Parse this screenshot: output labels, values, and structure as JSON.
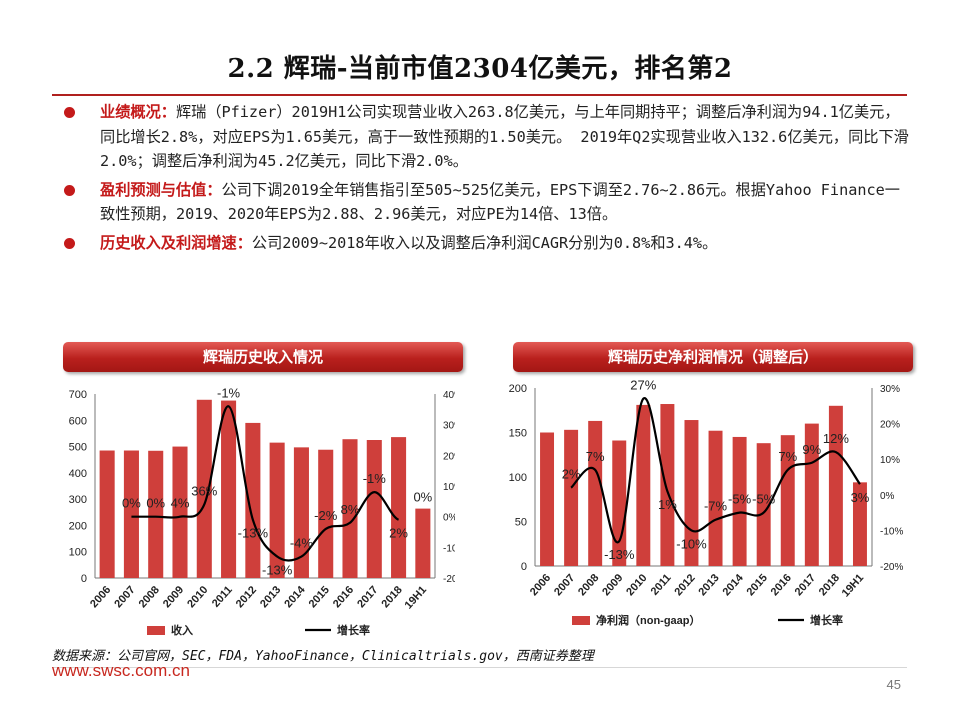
{
  "title": "2.2 辉瑞-当前市值2304亿美元，排名第2",
  "bullets": [
    {
      "lead": "业绩概况：",
      "text": "辉瑞（Pfizer）2019H1公司实现营业收入263.8亿美元，与上年同期持平；调整后净利润为94.1亿美元，同比增长2.8%，对应EPS为1.65美元，高于一致性预期的1.50美元。 2019年Q2实现营业收入132.6亿美元，同比下滑2.0%；调整后净利润为45.2亿美元，同比下滑2.0%。"
    },
    {
      "lead": "盈利预测与估值：",
      "text": "公司下调2019全年销售指引至505~525亿美元，EPS下调至2.76~2.86元。根据Yahoo Finance一致性预期，2019、2020年EPS为2.88、2.96美元，对应PE为14倍、13倍。"
    },
    {
      "lead": "历史收入及利润增速：",
      "text": "公司2009~2018年收入以及调整后净利润CAGR分别为0.8%和3.4%。"
    }
  ],
  "banners": {
    "left": "辉瑞历史收入情况",
    "right": "辉瑞历史净利润情况（调整后）"
  },
  "colors": {
    "bar": "#cf3f3b",
    "line": "#000000",
    "accent": "#c41a1a"
  },
  "chart_data": [
    {
      "type": "bar+line",
      "title": "辉瑞历史收入情况",
      "categories": [
        "2006",
        "2007",
        "2008",
        "2009",
        "2010",
        "2011",
        "2012",
        "2013",
        "2014",
        "2015",
        "2016",
        "2017",
        "2018",
        "19H1"
      ],
      "bar_series": {
        "name": "收入",
        "values": [
          485,
          485,
          484,
          500,
          678,
          675,
          590,
          515,
          497,
          488,
          528,
          525,
          536,
          264
        ]
      },
      "line_series": {
        "name": "增长率",
        "values": [
          0,
          0,
          0,
          4,
          36,
          -1,
          -13,
          -13,
          -4,
          -2,
          8,
          -1,
          2,
          0
        ]
      },
      "line_labels": [
        "0%",
        "0%",
        "4%",
        "36%",
        "-1%",
        "-13%",
        "-13%",
        "-4%",
        "-2%",
        "8%",
        "-1%",
        "2%",
        "0%"
      ],
      "line_label_index": [
        1,
        2,
        3,
        4,
        5,
        6,
        7,
        8,
        9,
        10,
        11,
        12,
        13
      ],
      "y_left": {
        "min": 0,
        "max": 700,
        "step": 100,
        "ticks": [
          "0",
          "100",
          "200",
          "300",
          "400",
          "500",
          "600",
          "700"
        ]
      },
      "y_right": {
        "min": -20,
        "max": 40,
        "step": 10,
        "ticks": [
          "-20%",
          "-10%",
          "0%",
          "10%",
          "20%",
          "30%",
          "40%"
        ]
      },
      "legend": [
        "收入",
        "增长率"
      ],
      "legend_position": "bottom"
    },
    {
      "type": "bar+line",
      "title": "辉瑞历史净利润情况（调整后）",
      "categories": [
        "2006",
        "2007",
        "2008",
        "2009",
        "2010",
        "2011",
        "2012",
        "2013",
        "2014",
        "2015",
        "2016",
        "2017",
        "2018",
        "19H1"
      ],
      "bar_series": {
        "name": "净利润（non-gaap）",
        "values": [
          150,
          153,
          163,
          141,
          181,
          182,
          164,
          152,
          145,
          138,
          147,
          160,
          180,
          94
        ]
      },
      "line_series": {
        "name": "增长率",
        "values": [
          2,
          7,
          -13,
          27,
          1,
          -10,
          -7,
          -5,
          -5,
          7,
          9,
          12,
          3
        ]
      },
      "line_labels": [
        "2%",
        "7%",
        "-13%",
        "27%",
        "1%",
        "-10%",
        "-7%",
        "-5%",
        "-5%",
        "7%",
        "9%",
        "12%",
        "3%"
      ],
      "line_label_index": [
        1,
        2,
        3,
        4,
        5,
        6,
        7,
        8,
        9,
        10,
        11,
        12,
        13
      ],
      "y_left": {
        "min": 0,
        "max": 200,
        "step": 50,
        "ticks": [
          "0",
          "50",
          "100",
          "150",
          "200"
        ]
      },
      "y_right": {
        "min": -20,
        "max": 30,
        "step": 10,
        "ticks": [
          "-20%",
          "-10%",
          "0%",
          "10%",
          "20%",
          "30%"
        ]
      },
      "legend": [
        "净利润（non-gaap）",
        "增长率"
      ],
      "legend_position": "bottom"
    }
  ],
  "source": "数据来源：公司官网，SEC，FDA，YahooFinance，Clinicaltrials.gov，西南证券整理",
  "site": "www.swsc.com.cn",
  "page": "45"
}
